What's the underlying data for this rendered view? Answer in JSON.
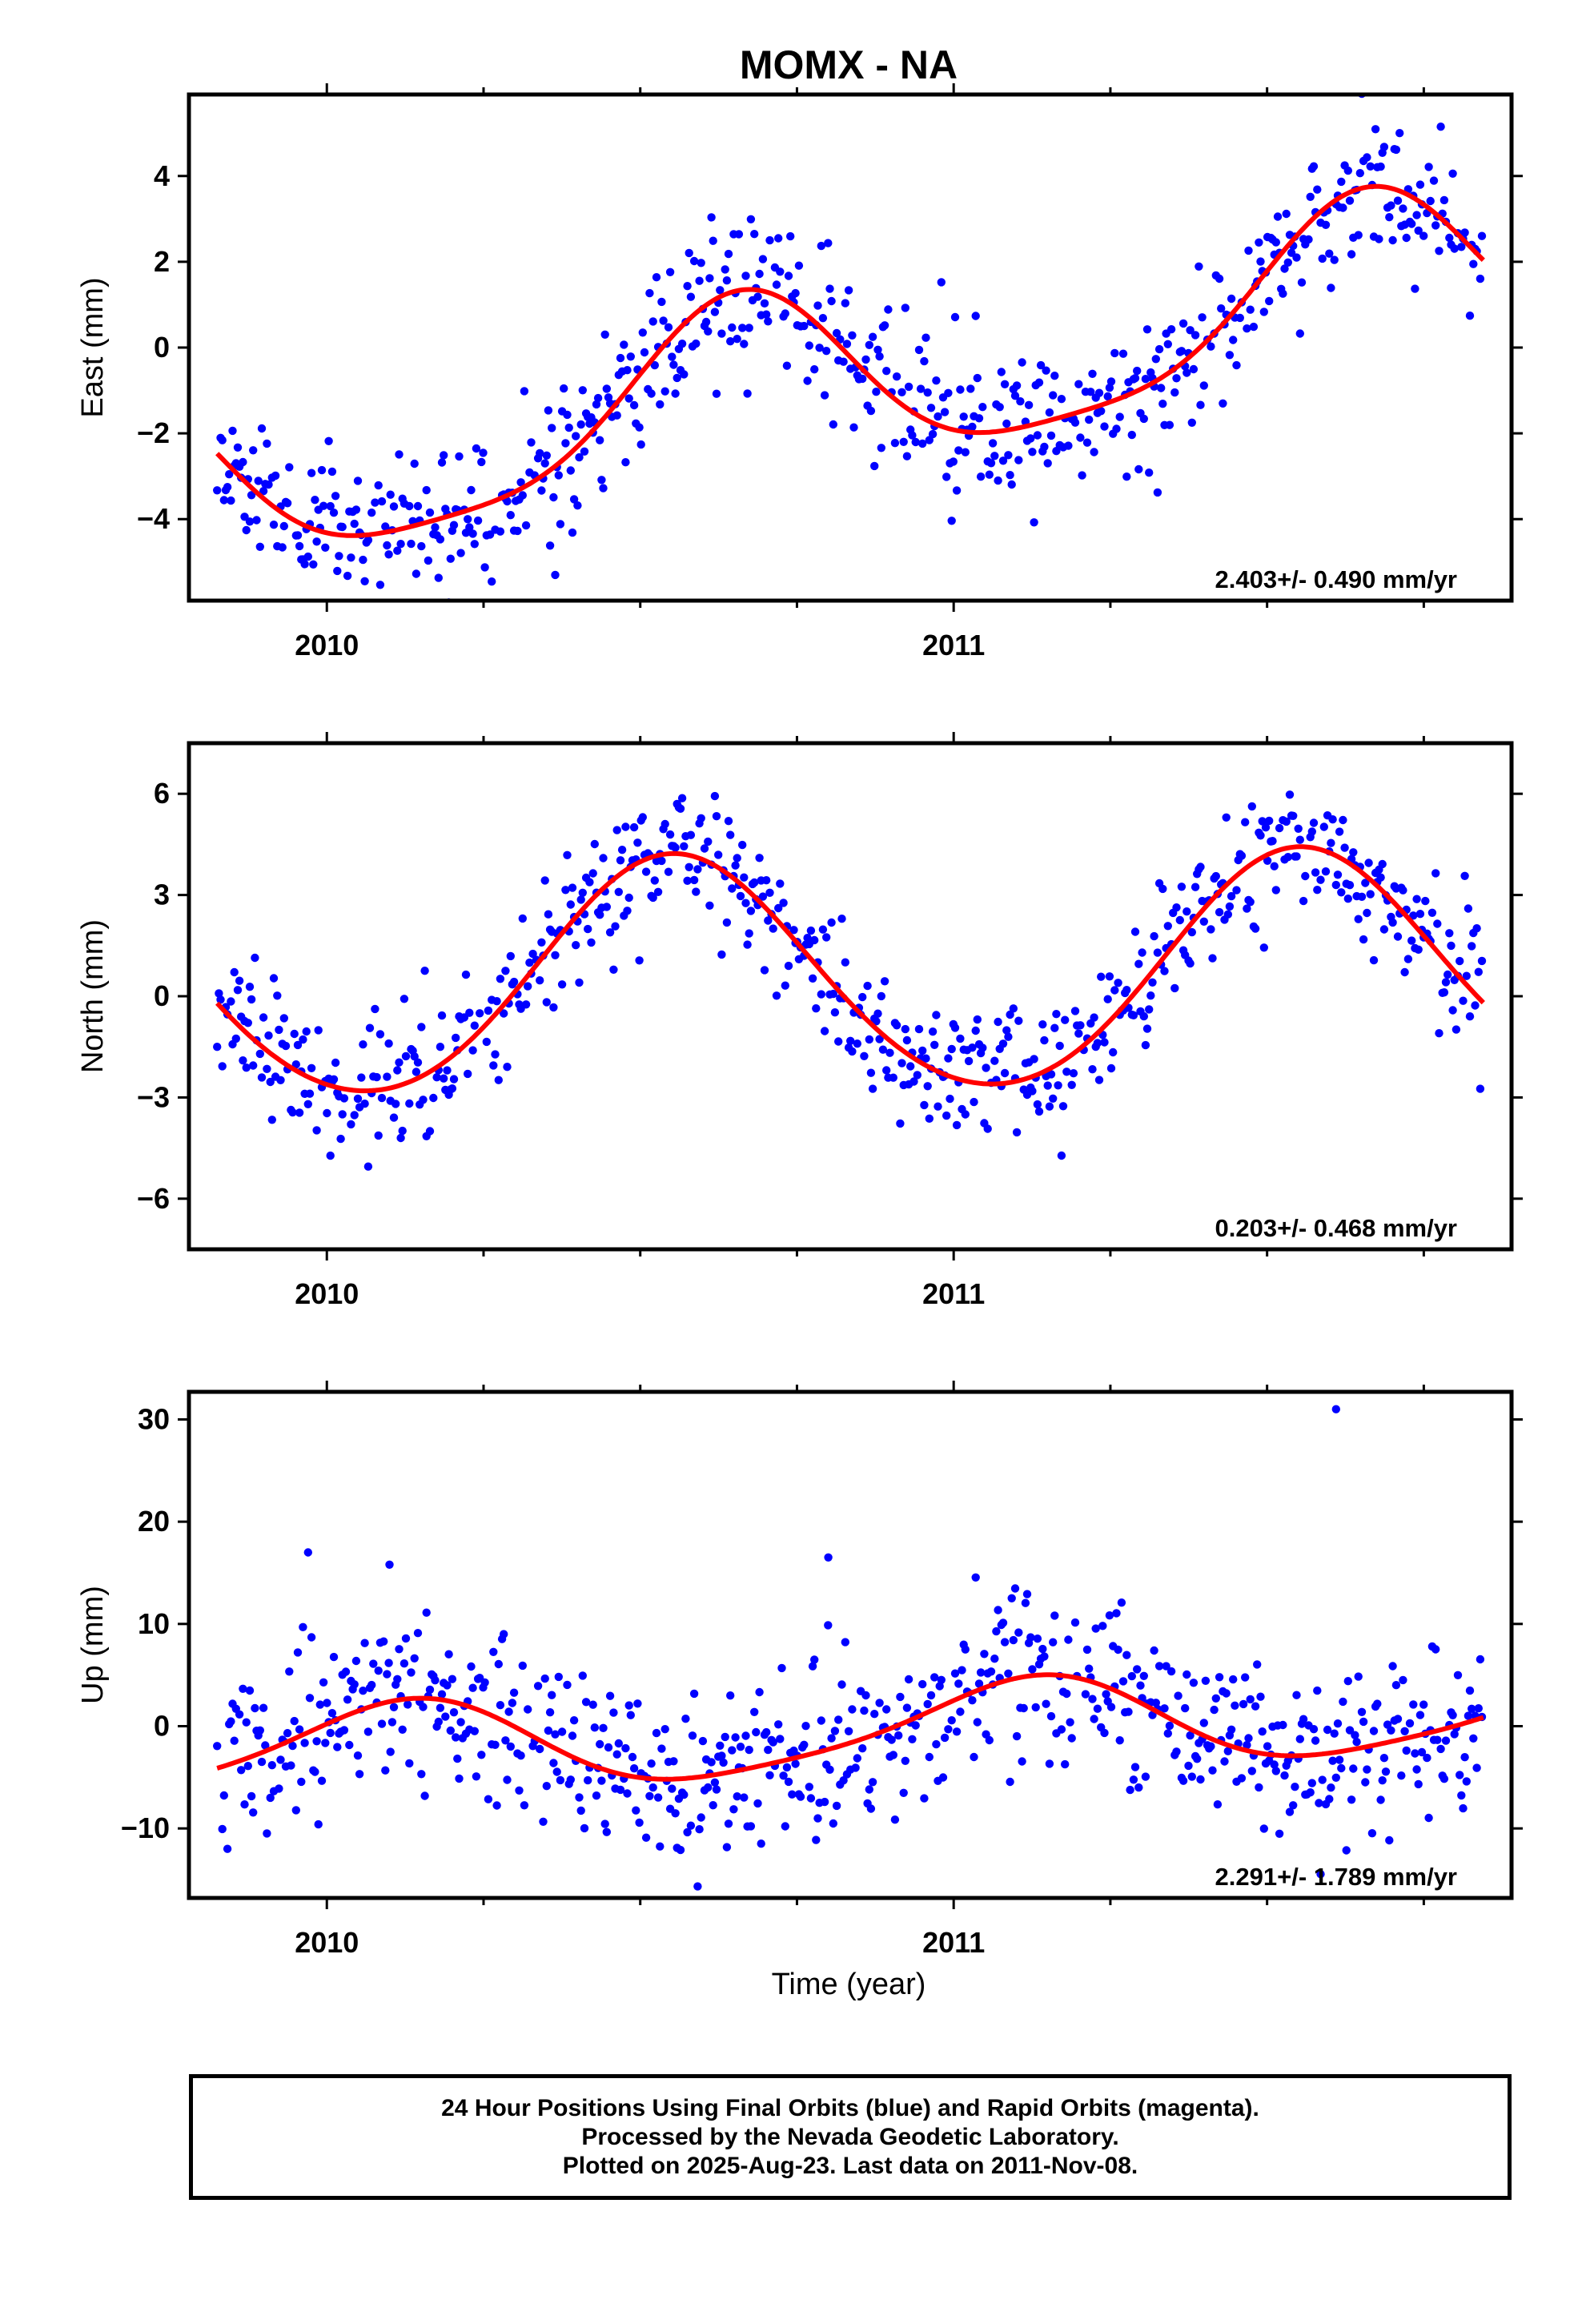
{
  "title": "MOMX - NA",
  "x_axis_label": "Time (year)",
  "chart_data": [
    {
      "type": "scatter",
      "ylabel": "East (mm)",
      "xlim": [
        2009.78,
        2011.89
      ],
      "ylim": [
        -5.9,
        5.9
      ],
      "yticks": [
        -4,
        -2,
        0,
        2,
        4
      ],
      "yticklabels": [
        "−4",
        "−2",
        "0",
        "2",
        "4"
      ],
      "xticks": [
        2010,
        2011
      ],
      "xticklabels": [
        "2010",
        "2011"
      ],
      "rate_label": "2.403+/- 0.490 mm/yr",
      "trend": {
        "offset": -0.85,
        "rate": 2.403,
        "t0": 2010.82,
        "annual_sin": -1.7,
        "annual_cos": -1.25,
        "semi_sin": 0.4,
        "semi_cos": -0.25
      },
      "scatter": {
        "noise": 0.9,
        "step_days": 1.0,
        "seed": 11
      },
      "marker_color": "#0000ff",
      "fit_color": "#ff0000"
    },
    {
      "type": "scatter",
      "ylabel": "North (mm)",
      "xlim": [
        2009.78,
        2011.89
      ],
      "ylim": [
        -7.5,
        7.5
      ],
      "yticks": [
        -6,
        -3,
        0,
        3,
        6
      ],
      "yticklabels": [
        "−6",
        "−3",
        "0",
        "3",
        "6"
      ],
      "xticks": [
        2010,
        2011
      ],
      "xticklabels": [
        "2010",
        "2011"
      ],
      "rate_label": "0.203+/- 0.468 mm/yr",
      "trend": {
        "offset": 0.6,
        "rate": 0.203,
        "t0": 2010.82,
        "annual_sin": -1.2,
        "annual_cos": -3.25,
        "semi_sin": 0.1,
        "semi_cos": 0.2
      },
      "scatter": {
        "noise": 1.0,
        "step_days": 1.0,
        "seed": 23
      },
      "marker_color": "#0000ff",
      "fit_color": "#ff0000"
    },
    {
      "type": "scatter",
      "ylabel": "Up (mm)",
      "xlim": [
        2009.78,
        2011.89
      ],
      "ylim": [
        -16.8,
        32.7
      ],
      "yticks": [
        -10,
        0,
        10,
        20,
        30
      ],
      "yticklabels": [
        "−10",
        "0",
        "10",
        "20",
        "30"
      ],
      "xticks": [
        2010,
        2011
      ],
      "xticklabels": [
        "2010",
        "2011"
      ],
      "rate_label": "2.291+/- 1.789 mm/yr",
      "trend": {
        "offset": -0.6,
        "rate": 2.291,
        "t0": 2010.82,
        "annual_sin": 2.8,
        "annual_cos": 3.2,
        "semi_sin": 0.6,
        "semi_cos": -0.5
      },
      "scatter": {
        "noise": 4.0,
        "step_days": 1.0,
        "seed": 37
      },
      "outliers": [
        {
          "x": 2011.61,
          "y": 31.0
        },
        {
          "x": 2010.8,
          "y": 16.5
        },
        {
          "x": 2009.97,
          "y": 17.0
        },
        {
          "x": 2010.1,
          "y": 15.8
        }
      ],
      "marker_color": "#0000ff",
      "fit_color": "#ff0000"
    }
  ],
  "footer": {
    "line1": "24 Hour Positions Using Final Orbits (blue) and Rapid Orbits (magenta).",
    "line2": "Processed by the Nevada Geodetic Laboratory.",
    "line3": "Plotted on 2025-Aug-23. Last data on 2011-Nov-08."
  }
}
